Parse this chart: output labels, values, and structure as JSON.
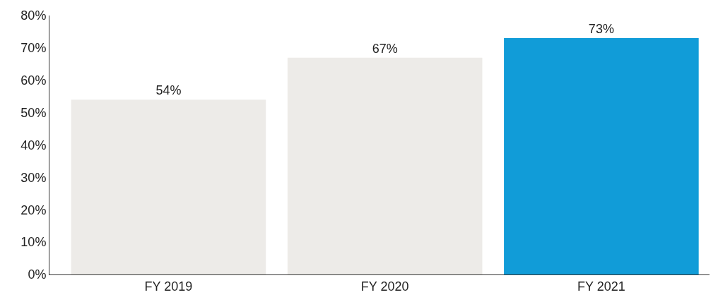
{
  "chart_data": {
    "type": "bar",
    "categories": [
      "FY 2019",
      "FY 2020",
      "FY 2021"
    ],
    "values": [
      54,
      67,
      73
    ],
    "colors": [
      "#edebe8",
      "#edebe8",
      "#119cd8"
    ],
    "value_labels": [
      "54%",
      "67%",
      "73%"
    ],
    "ylim": [
      0,
      80
    ],
    "yticks": [
      {
        "value": 0,
        "label": "0%"
      },
      {
        "value": 10,
        "label": "10%"
      },
      {
        "value": 20,
        "label": "20%"
      },
      {
        "value": 30,
        "label": "30%"
      },
      {
        "value": 40,
        "label": "40%"
      },
      {
        "value": 50,
        "label": "50%"
      },
      {
        "value": 60,
        "label": "60%"
      },
      {
        "value": 70,
        "label": "70%"
      },
      {
        "value": 80,
        "label": "80%"
      }
    ],
    "orientation": "vertical"
  }
}
